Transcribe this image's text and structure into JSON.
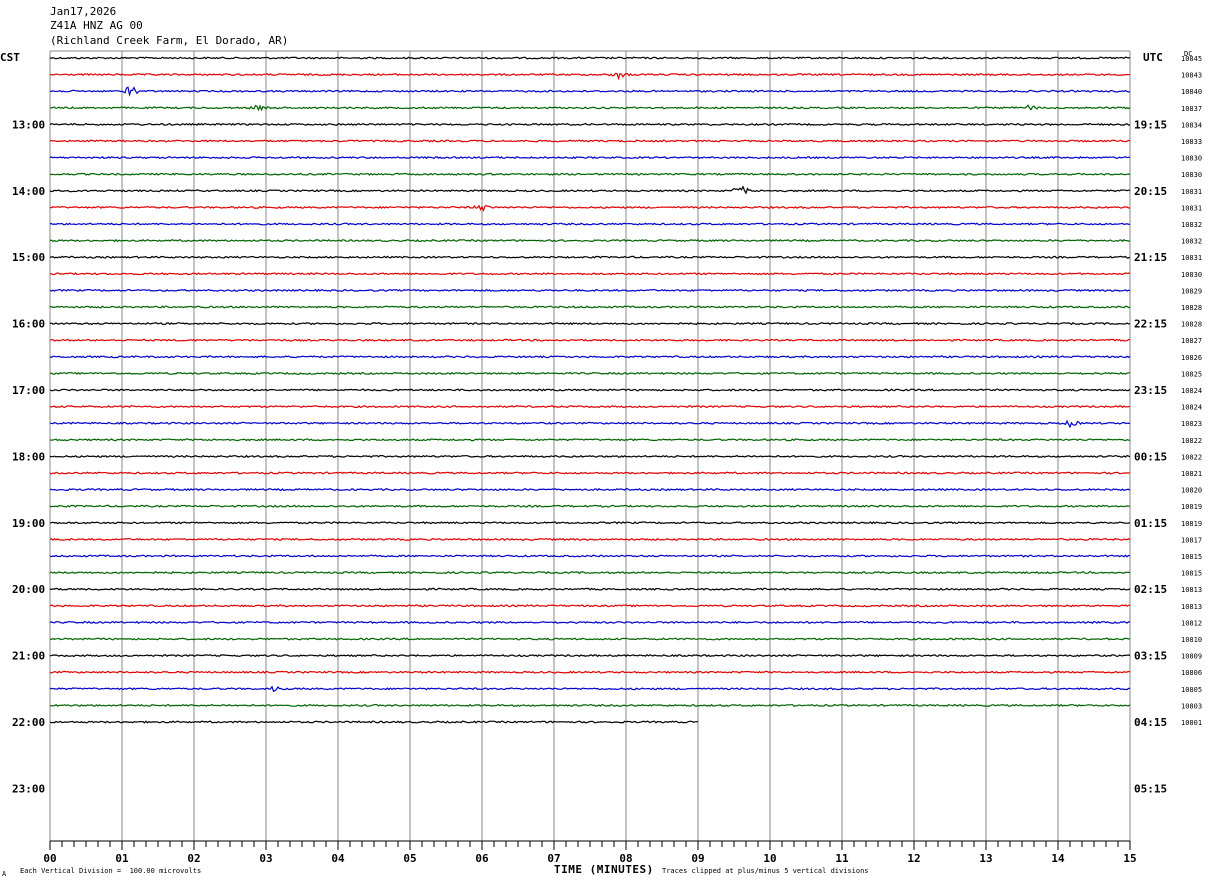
{
  "header": {
    "date": "Jan17,2026",
    "station": "Z41A HNZ AG 00",
    "location": "(Richland Creek Farm, El Dorado, AR)"
  },
  "left_zone": "CST",
  "right_zone": "UTC",
  "dc_label": "DC",
  "footer": {
    "left": "Each Vertical Division =  100.00 microvolts",
    "right": "Traces clipped at plus/minus 5 vertical divisions",
    "mark": "A"
  },
  "colors": {
    "trace_cycle": [
      "#000000",
      "#e00000",
      "#0000cc",
      "#006400"
    ],
    "grid": "#888888"
  },
  "chart_data": {
    "type": "line",
    "title": "Jan17,2026",
    "xlabel": "TIME (MINUTES)",
    "ylabel": "",
    "xlim": [
      0,
      15
    ],
    "x_ticks": [
      "00",
      "01",
      "02",
      "03",
      "04",
      "05",
      "06",
      "07",
      "08",
      "09",
      "10",
      "11",
      "12",
      "13",
      "14",
      "15"
    ],
    "rows_per_hour": 4,
    "local_hour_labels": [
      "13:00",
      "14:00",
      "15:00",
      "16:00",
      "17:00",
      "18:00",
      "19:00",
      "20:00",
      "21:00",
      "22:00",
      "23:00"
    ],
    "utc_hour_labels": [
      "19:15",
      "20:15",
      "21:15",
      "22:15",
      "23:15",
      "00:15",
      "01:15",
      "02:15",
      "03:15",
      "04:15",
      "05:15"
    ],
    "dc_values": [
      10845,
      10843,
      10840,
      10837,
      10834,
      10833,
      10830,
      10830,
      10831,
      10831,
      10832,
      10832,
      10831,
      10830,
      10829,
      10828,
      10828,
      10827,
      10826,
      10825,
      10824,
      10824,
      10823,
      10822,
      10822,
      10821,
      10820,
      10819,
      10819,
      10817,
      10815,
      10815,
      10813,
      10813,
      10812,
      10810,
      10809,
      10806,
      10805,
      10803,
      10801
    ],
    "last_row_end_minute": 9,
    "events": [
      {
        "row": 1,
        "minute": 7.9,
        "amplitude": 4
      },
      {
        "row": 2,
        "minute": 1.1,
        "amplitude": 5
      },
      {
        "row": 3,
        "minute": 2.9,
        "amplitude": 3
      },
      {
        "row": 3,
        "minute": 13.6,
        "amplitude": 3
      },
      {
        "row": 8,
        "minute": 9.6,
        "amplitude": 5
      },
      {
        "row": 9,
        "minute": 6.0,
        "amplitude": 3
      },
      {
        "row": 22,
        "minute": 14.2,
        "amplitude": 4
      },
      {
        "row": 38,
        "minute": 3.1,
        "amplitude": 2
      }
    ]
  }
}
